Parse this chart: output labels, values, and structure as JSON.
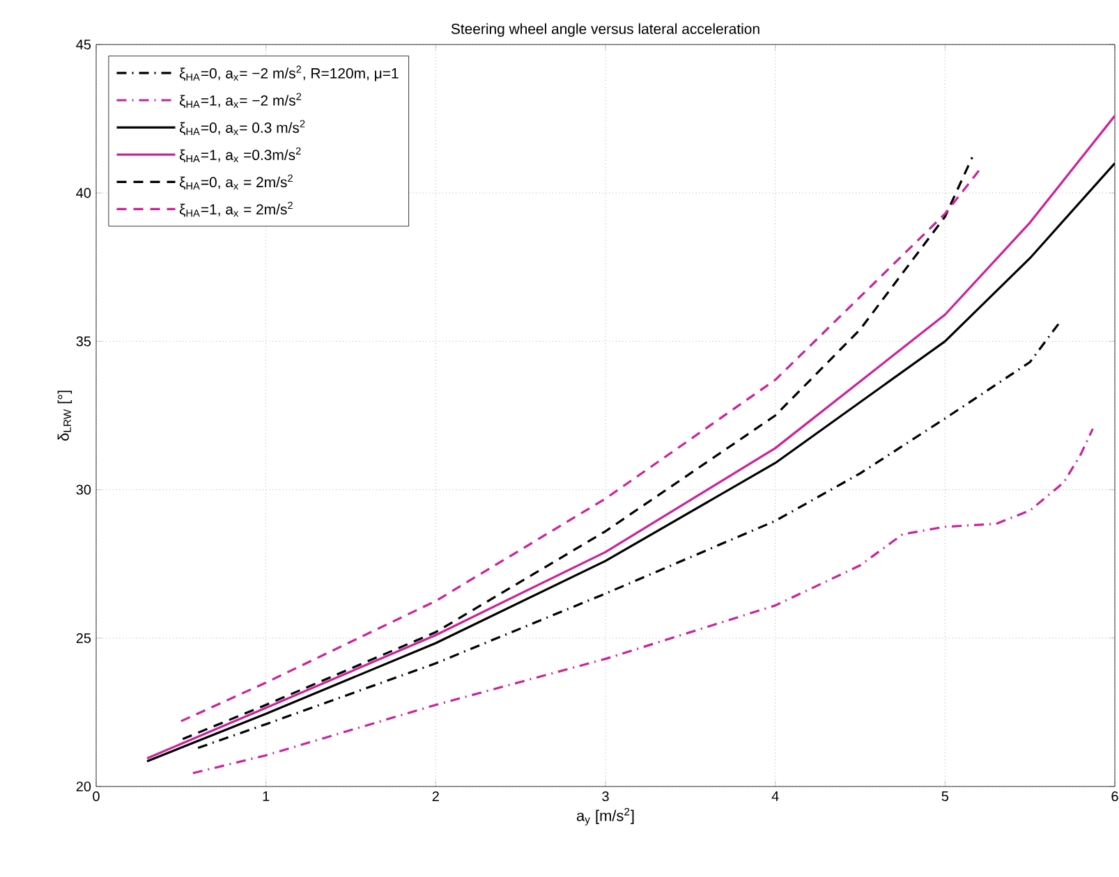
{
  "chart_data": {
    "type": "line",
    "title": "Steering wheel angle versus lateral acceleration",
    "xlabel": "a$_{y}$ [m/s$^{2}$]",
    "ylabel": "δ$_{LRW}$ [°]",
    "xlim": [
      0,
      6
    ],
    "ylim": [
      20,
      45
    ],
    "xticks": [
      0,
      1,
      2,
      3,
      4,
      5,
      6
    ],
    "yticks": [
      20,
      25,
      30,
      35,
      40,
      45
    ],
    "grid": true,
    "legend": "top left",
    "series": [
      {
        "name": "ξ$_{HA}$=0, a$_{x}$= −2 m/s$^{2}$, R=120m, μ=1",
        "color": "#000000",
        "line_style": "dashdot",
        "x": [
          0.6,
          1,
          2,
          3,
          4,
          4.5,
          5,
          5.5,
          5.67
        ],
        "values": [
          21.3,
          22.1,
          24.15,
          26.5,
          28.95,
          30.55,
          32.4,
          34.3,
          35.6
        ]
      },
      {
        "name": "ξ$_{HA}$=1, a$_{x}$= −2 m/s$^{2}$",
        "color": "#cc2299",
        "line_style": "dashdot",
        "x": [
          0.57,
          1,
          2,
          3,
          4,
          4.5,
          4.75,
          5,
          5.3,
          5.5,
          5.7,
          5.8,
          5.87
        ],
        "values": [
          20.45,
          21.05,
          22.75,
          24.3,
          26.1,
          27.45,
          28.5,
          28.75,
          28.85,
          29.3,
          30.25,
          31.2,
          32.05
        ]
      },
      {
        "name": "ξ$_{HA}$=0, a$_{x}$= 0.3 m/s$^{2}$",
        "color": "#000000",
        "line_style": "solid",
        "x": [
          0.3,
          1,
          2,
          3,
          4,
          5,
          5.5,
          6
        ],
        "values": [
          20.85,
          22.45,
          24.83,
          27.6,
          30.9,
          35.0,
          37.8,
          41.0
        ]
      },
      {
        "name": "ξ$_{HA}$=1, a$_{x}$  =0.3m/s$^{2}$",
        "color": "#cc2299",
        "line_style": "solid",
        "x": [
          0.3,
          1,
          2,
          3,
          4,
          5,
          5.5,
          6
        ],
        "values": [
          20.95,
          22.65,
          25.1,
          27.9,
          31.4,
          35.9,
          39.0,
          42.6
        ]
      },
      {
        "name": "ξ$_{HA}$=0, a$_{x}$ = 2m/s$^{2}$",
        "color": "#000000",
        "line_style": "dashed",
        "x": [
          0.51,
          1,
          2,
          3,
          4,
          4.5,
          5,
          5.16
        ],
        "values": [
          21.6,
          22.75,
          25.2,
          28.6,
          32.5,
          35.4,
          39.2,
          41.2
        ]
      },
      {
        "name": "ξ$_{HA}$=1, a$_{x}$ = 2m/s$^{2}$",
        "color": "#cc2299",
        "line_style": "dashed",
        "x": [
          0.5,
          1,
          2,
          3,
          4,
          4.5,
          5,
          5.22
        ],
        "values": [
          22.2,
          23.5,
          26.25,
          29.7,
          33.7,
          36.5,
          39.3,
          40.9
        ]
      }
    ]
  }
}
